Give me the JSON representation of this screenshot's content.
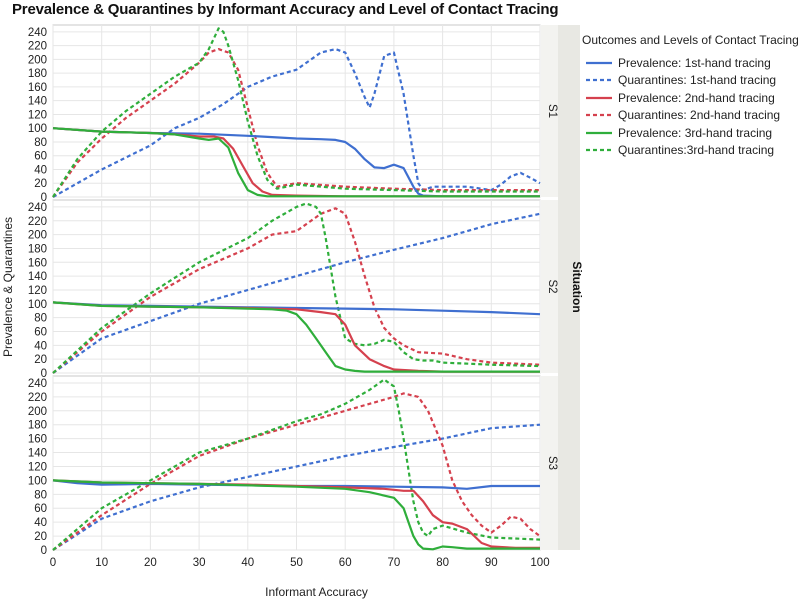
{
  "title": "Prevalence & Quarantines by Informant Accuracy and Level of Contact Tracing",
  "legend": {
    "title": "Outcomes and Levels of Contact Tracing",
    "items": [
      {
        "label": "Prevalence: 1st-hand tracing",
        "color": "#3f6fd0",
        "dash": false
      },
      {
        "label": "Quarantines: 1st-hand tracing",
        "color": "#3f6fd0",
        "dash": true
      },
      {
        "label": "Prevalence: 2nd-hand tracing",
        "color": "#d5414e",
        "dash": false
      },
      {
        "label": "Quarantines: 2nd-hand tracing",
        "color": "#d5414e",
        "dash": true
      },
      {
        "label": "Prevalence: 3rd-hand tracing",
        "color": "#2fae3b",
        "dash": false
      },
      {
        "label": "Quarantines:3rd-hand tracing",
        "color": "#2fae3b",
        "dash": true
      }
    ]
  },
  "chart_data": {
    "type": "line",
    "title": "Prevalence & Quarantines by Informant Accuracy and Level of Contact Tracing",
    "xlabel": "Informant Accuracy",
    "ylabel": "Prevalence & Quarantines",
    "facet_label": "Situation",
    "xlim": [
      0,
      100
    ],
    "ylim": [
      0,
      250
    ],
    "xticks": [
      0,
      10,
      20,
      30,
      40,
      50,
      60,
      70,
      80,
      90,
      100
    ],
    "yticks": [
      0,
      20,
      40,
      60,
      80,
      100,
      120,
      140,
      160,
      180,
      200,
      220,
      240
    ],
    "grid": true,
    "legend_position": "right",
    "panels": [
      {
        "name": "S1",
        "series": [
          {
            "name": "Prevalence: 1st-hand tracing",
            "x": [
              0,
              10,
              20,
              30,
              40,
              45,
              50,
              55,
              58,
              60,
              62,
              64,
              66,
              68,
              70,
              72,
              74,
              75,
              76,
              80,
              90,
              100
            ],
            "y": [
              100,
              95,
              93,
              92,
              89,
              87,
              85,
              84,
              83,
              80,
              70,
              55,
              43,
              42,
              47,
              42,
              15,
              5,
              2,
              1,
              1,
              1
            ]
          },
          {
            "name": "Quarantines: 1st-hand tracing",
            "x": [
              0,
              10,
              20,
              25,
              30,
              35,
              40,
              45,
              50,
              55,
              58,
              60,
              62,
              64,
              65,
              66,
              68,
              70,
              72,
              74,
              75,
              76,
              78,
              80,
              85,
              88,
              90,
              92,
              94,
              96,
              98,
              100
            ],
            "y": [
              0,
              40,
              75,
              100,
              115,
              135,
              160,
              175,
              185,
              210,
              215,
              210,
              180,
              145,
              130,
              150,
              205,
              210,
              150,
              60,
              20,
              10,
              15,
              15,
              15,
              12,
              10,
              18,
              30,
              35,
              28,
              20
            ]
          },
          {
            "name": "Prevalence: 2nd-hand tracing",
            "x": [
              0,
              10,
              20,
              25,
              30,
              33,
              35,
              37,
              39,
              41,
              43,
              45,
              50,
              60,
              70,
              80,
              90,
              100
            ],
            "y": [
              100,
              95,
              93,
              91,
              88,
              88,
              85,
              70,
              45,
              20,
              8,
              3,
              2,
              1,
              1,
              1,
              1,
              1
            ]
          },
          {
            "name": "Quarantines: 2nd-hand tracing",
            "x": [
              0,
              5,
              10,
              15,
              20,
              25,
              30,
              32,
              34,
              36,
              38,
              40,
              42,
              44,
              46,
              50,
              60,
              70,
              80,
              90,
              100
            ],
            "y": [
              0,
              50,
              85,
              115,
              140,
              165,
              195,
              210,
              215,
              210,
              185,
              130,
              75,
              35,
              15,
              20,
              15,
              12,
              10,
              10,
              10
            ]
          },
          {
            "name": "Prevalence: 3rd-hand tracing",
            "x": [
              0,
              10,
              20,
              25,
              30,
              32,
              34,
              36,
              38,
              40,
              42,
              44,
              46,
              50,
              60,
              70,
              80,
              90,
              100
            ],
            "y": [
              100,
              95,
              93,
              91,
              85,
              83,
              85,
              72,
              35,
              10,
              3,
              1,
              1,
              1,
              1,
              1,
              1,
              1,
              1
            ]
          },
          {
            "name": "Quarantines:3rd-hand tracing",
            "x": [
              0,
              5,
              10,
              15,
              20,
              25,
              30,
              32,
              34,
              35,
              36,
              38,
              40,
              42,
              44,
              46,
              50,
              60,
              70,
              80,
              90,
              100
            ],
            "y": [
              0,
              55,
              95,
              125,
              150,
              175,
              195,
              215,
              245,
              240,
              220,
              170,
              110,
              60,
              25,
              12,
              18,
              12,
              10,
              8,
              8,
              8
            ]
          }
        ]
      },
      {
        "name": "S2",
        "series": [
          {
            "name": "Prevalence: 1st-hand tracing",
            "x": [
              0,
              10,
              20,
              30,
              40,
              50,
              60,
              70,
              80,
              90,
              100
            ],
            "y": [
              102,
              98,
              97,
              96,
              95,
              94,
              93,
              92,
              90,
              88,
              85
            ]
          },
          {
            "name": "Quarantines: 1st-hand tracing",
            "x": [
              0,
              10,
              20,
              30,
              40,
              50,
              60,
              70,
              80,
              90,
              100
            ],
            "y": [
              0,
              50,
              75,
              100,
              120,
              140,
              160,
              178,
              195,
              215,
              230
            ]
          },
          {
            "name": "Prevalence: 2nd-hand tracing",
            "x": [
              0,
              10,
              20,
              30,
              40,
              50,
              55,
              58,
              60,
              62,
              65,
              68,
              70,
              75,
              80,
              90,
              100
            ],
            "y": [
              102,
              97,
              96,
              95,
              94,
              92,
              88,
              85,
              70,
              40,
              20,
              10,
              5,
              3,
              2,
              2,
              2
            ]
          },
          {
            "name": "Quarantines: 2nd-hand tracing",
            "x": [
              0,
              10,
              20,
              30,
              40,
              45,
              50,
              55,
              58,
              60,
              62,
              64,
              66,
              68,
              70,
              72,
              75,
              80,
              85,
              90,
              100
            ],
            "y": [
              0,
              60,
              110,
              150,
              180,
              200,
              205,
              230,
              238,
              230,
              190,
              140,
              95,
              65,
              50,
              40,
              30,
              28,
              20,
              15,
              12
            ]
          },
          {
            "name": "Prevalence: 3rd-hand tracing",
            "x": [
              0,
              10,
              20,
              30,
              40,
              45,
              48,
              50,
              52,
              54,
              56,
              58,
              60,
              62,
              64,
              70,
              80,
              90,
              100
            ],
            "y": [
              102,
              97,
              96,
              95,
              93,
              92,
              90,
              85,
              70,
              50,
              30,
              10,
              5,
              3,
              2,
              2,
              2,
              2,
              2
            ]
          },
          {
            "name": "Quarantines:3rd-hand tracing",
            "x": [
              0,
              10,
              20,
              30,
              40,
              45,
              50,
              52,
              54,
              55,
              56,
              58,
              60,
              62,
              64,
              66,
              68,
              70,
              72,
              74,
              76,
              78,
              80,
              90,
              100
            ],
            "y": [
              0,
              65,
              115,
              160,
              195,
              220,
              240,
              245,
              240,
              230,
              195,
              110,
              50,
              42,
              40,
              42,
              48,
              45,
              30,
              20,
              18,
              18,
              15,
              12,
              10
            ]
          }
        ]
      },
      {
        "name": "S3",
        "series": [
          {
            "name": "Prevalence: 1st-hand tracing",
            "x": [
              0,
              5,
              10,
              20,
              30,
              40,
              50,
              60,
              70,
              80,
              85,
              90,
              100
            ],
            "y": [
              100,
              96,
              94,
              95,
              94,
              93,
              92,
              92,
              91,
              90,
              88,
              92,
              92
            ]
          },
          {
            "name": "Quarantines: 1st-hand tracing",
            "x": [
              0,
              10,
              20,
              30,
              40,
              50,
              60,
              70,
              80,
              90,
              100
            ],
            "y": [
              0,
              45,
              70,
              90,
              105,
              120,
              135,
              148,
              160,
              175,
              180
            ]
          },
          {
            "name": "Prevalence: 2nd-hand tracing",
            "x": [
              0,
              10,
              20,
              30,
              40,
              50,
              60,
              68,
              72,
              74,
              76,
              78,
              80,
              82,
              85,
              88,
              90,
              95,
              100
            ],
            "y": [
              100,
              97,
              96,
              95,
              94,
              92,
              90,
              88,
              85,
              85,
              70,
              50,
              40,
              38,
              30,
              10,
              5,
              3,
              3
            ]
          },
          {
            "name": "Quarantines: 2nd-hand tracing",
            "x": [
              0,
              10,
              20,
              30,
              40,
              50,
              60,
              65,
              70,
              72,
              75,
              77,
              80,
              82,
              84,
              86,
              88,
              90,
              92,
              94,
              96,
              98,
              100
            ],
            "y": [
              0,
              50,
              95,
              135,
              160,
              180,
              200,
              210,
              220,
              225,
              220,
              200,
              150,
              100,
              70,
              50,
              35,
              25,
              35,
              48,
              45,
              30,
              20
            ]
          },
          {
            "name": "Prevalence: 3rd-hand tracing",
            "x": [
              0,
              10,
              20,
              30,
              40,
              50,
              60,
              65,
              70,
              72,
              73,
              74,
              75,
              76,
              78,
              80,
              82,
              85,
              90,
              100
            ],
            "y": [
              100,
              97,
              96,
              95,
              93,
              91,
              88,
              83,
              75,
              60,
              40,
              20,
              8,
              2,
              1,
              5,
              4,
              2,
              2,
              2
            ]
          },
          {
            "name": "Quarantines:3rd-hand tracing",
            "x": [
              0,
              10,
              20,
              30,
              40,
              50,
              55,
              60,
              65,
              68,
              69,
              70,
              71,
              72,
              73,
              74,
              75,
              76,
              77,
              78,
              80,
              85,
              90,
              100
            ],
            "y": [
              0,
              60,
              100,
              140,
              160,
              185,
              195,
              210,
              230,
              245,
              240,
              235,
              200,
              160,
              115,
              70,
              40,
              25,
              20,
              30,
              35,
              25,
              18,
              15
            ]
          }
        ]
      }
    ]
  }
}
